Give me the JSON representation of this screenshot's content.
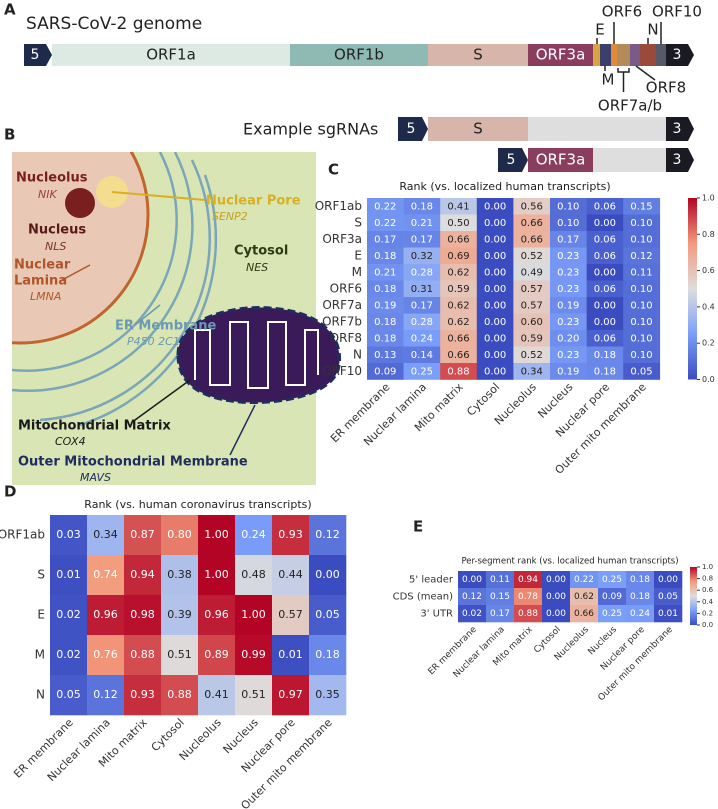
{
  "panel_labels": [
    "A",
    "B",
    "C",
    "D",
    "E"
  ],
  "genome": {
    "title": "SARS-CoV-2 genome",
    "five": "5",
    "three": "3",
    "segments": [
      {
        "name": "ORF1a",
        "color": "#dde9e3"
      },
      {
        "name": "ORF1b",
        "color": "#8fbab3"
      },
      {
        "name": "S",
        "color": "#d8b5aa"
      },
      {
        "name": "ORF3a",
        "color": "#8b3d5e"
      },
      {
        "name": "E",
        "color": "#d9a441"
      },
      {
        "name": "M",
        "color": "#3a3f6e"
      },
      {
        "name": "ORF6",
        "color": "#e08a3a"
      },
      {
        "name": "ORF7a/b",
        "color": "#b38a5a"
      },
      {
        "name": "ORF8",
        "color": "#7a5a8a"
      },
      {
        "name": "N",
        "color": "#9a4a3a"
      },
      {
        "name": "ORF10",
        "color": "#555a6a"
      }
    ]
  },
  "sgrnas": {
    "label": "Example sgRNAs",
    "rows": [
      [
        "5",
        "S",
        "3"
      ],
      [
        "5",
        "ORF3a",
        "3"
      ]
    ]
  },
  "cell_diagram": {
    "compartments": [
      {
        "name": "Nucleolus",
        "marker": "NIK"
      },
      {
        "name": "Nucleus",
        "marker": "NLS"
      },
      {
        "name_lines": [
          "Nuclear",
          "Lamina"
        ],
        "marker": "LMNA"
      },
      {
        "name": "Nuclear Pore",
        "marker": "SENP2"
      },
      {
        "name": "Cytosol",
        "marker": "NES"
      },
      {
        "name": "ER Membrane",
        "marker": "P450 2C1"
      },
      {
        "name": "Mitochondrial Matrix",
        "marker": "COX4"
      },
      {
        "name": "Outer Mitochondrial Membrane",
        "marker": "MAVS"
      }
    ]
  },
  "chart_data": [
    {
      "type": "heatmap",
      "title": "Rank (vs. localized human transcripts)",
      "colormap": "coolwarm",
      "rows": [
        "ORF1ab",
        "S",
        "ORF3a",
        "E",
        "M",
        "ORF6",
        "ORF7a",
        "ORF7b",
        "ORF8",
        "N",
        "ORF10"
      ],
      "columns": [
        "ER membrane",
        "Nuclear lamina",
        "Mito matrix",
        "Cytosol",
        "Nucleolus",
        "Nucleus",
        "Nuclear pore",
        "Outer mito membrane"
      ],
      "values": [
        [
          0.22,
          0.18,
          0.41,
          0,
          0.56,
          0.1,
          0.06,
          0.15
        ],
        [
          0.22,
          0.21,
          0.5,
          0,
          0.66,
          0.1,
          0,
          0.1
        ],
        [
          0.17,
          0.17,
          0.66,
          0,
          0.66,
          0.17,
          0.06,
          0.1
        ],
        [
          0.18,
          0.32,
          0.69,
          0,
          0.52,
          0.23,
          0.06,
          0.12
        ],
        [
          0.21,
          0.28,
          0.62,
          0,
          0.49,
          0.23,
          0,
          0.11
        ],
        [
          0.18,
          0.31,
          0.59,
          0,
          0.57,
          0.23,
          0.06,
          0.1
        ],
        [
          0.19,
          0.17,
          0.62,
          0,
          0.57,
          0.19,
          0,
          0.1
        ],
        [
          0.18,
          0.28,
          0.62,
          0,
          0.6,
          0.23,
          0,
          0.1
        ],
        [
          0.18,
          0.24,
          0.66,
          0,
          0.59,
          0.2,
          0.06,
          0.1
        ],
        [
          0.13,
          0.14,
          0.66,
          0,
          0.52,
          0.23,
          0.18,
          0.1
        ],
        [
          0.09,
          0.25,
          0.88,
          0,
          0.34,
          0.19,
          0.18,
          0.05
        ]
      ],
      "value_labels": [
        [
          "0.22",
          "0.18",
          "0.41",
          "0.00",
          "0.56",
          "0.10",
          "0.06",
          "0.15"
        ],
        [
          "0.22",
          "0.21",
          "0.50",
          "0.00",
          "0.66",
          "0.10",
          "0.00",
          "0.10"
        ],
        [
          "0.17",
          "0.17",
          "0.66",
          "0.00",
          "0.66",
          "0.17",
          "0.06",
          "0.10"
        ],
        [
          "0.18",
          "0.32",
          "0.69",
          "0.00",
          "0.52",
          "0.23",
          "0.06",
          "0.12"
        ],
        [
          "0.21",
          "0.28",
          "0.62",
          "0.00",
          "0.49",
          "0.23",
          "0.00",
          "0.11"
        ],
        [
          "0.18",
          "0.31",
          "0.59",
          "0.00",
          "0.57",
          "0.23",
          "0.06",
          "0.10"
        ],
        [
          "0.19",
          "0.17",
          "0.62",
          "0.00",
          "0.57",
          "0.19",
          "0.00",
          "0.10"
        ],
        [
          "0.18",
          "0.28",
          "0.62",
          "0.00",
          "0.60",
          "0.23",
          "0.00",
          "0.10"
        ],
        [
          "0.18",
          "0.24",
          "0.66",
          "0.00",
          "0.59",
          "0.20",
          "0.06",
          "0.10"
        ],
        [
          "0.13",
          "0.14",
          "0.66",
          "0.00",
          "0.52",
          "0.23",
          "0.18",
          "0.10"
        ],
        [
          "0.09",
          "0.25",
          "0.88",
          "0.00",
          "0.34",
          "0.19",
          "0.18",
          "0.05"
        ]
      ],
      "clim": [
        0,
        1
      ],
      "cticks": [
        {
          "value": 0,
          "label": "0.0"
        },
        0.2,
        0.4,
        0.6,
        0.8,
        {
          "value": 1,
          "label": "1.0"
        }
      ]
    },
    {
      "type": "heatmap",
      "title": "Rank (vs. human coronavirus transcripts)",
      "colormap": "coolwarm",
      "rows": [
        "ORF1ab",
        "S",
        "E",
        "M",
        "N"
      ],
      "columns": [
        "ER membrane",
        "Nuclear lamina",
        "Mito matrix",
        "Cytosol",
        "Nucleolus",
        "Nucleus",
        "Nuclear pore",
        "Outer mito membrane"
      ],
      "values": [
        [
          0.03,
          0.34,
          0.87,
          0.8,
          1,
          0.24,
          0.93,
          0.12
        ],
        [
          0.01,
          0.74,
          0.94,
          0.38,
          1,
          0.48,
          0.44,
          0
        ],
        [
          0.02,
          0.96,
          0.98,
          0.39,
          0.96,
          1,
          0.57,
          0.05
        ],
        [
          0.02,
          0.76,
          0.88,
          0.51,
          0.89,
          0.99,
          0.01,
          0.18
        ],
        [
          0.05,
          0.12,
          0.93,
          0.88,
          0.41,
          0.51,
          0.97,
          0.35
        ]
      ],
      "value_labels": [
        [
          "0.03",
          "0.34",
          "0.87",
          "0.80",
          "1.00",
          "0.24",
          "0.93",
          "0.12"
        ],
        [
          "0.01",
          "0.74",
          "0.94",
          "0.38",
          "1.00",
          "0.48",
          "0.44",
          "0.00"
        ],
        [
          "0.02",
          "0.96",
          "0.98",
          "0.39",
          "0.96",
          "1.00",
          "0.57",
          "0.05"
        ],
        [
          "0.02",
          "0.76",
          "0.88",
          "0.51",
          "0.89",
          "0.99",
          "0.01",
          "0.18"
        ],
        [
          "0.05",
          "0.12",
          "0.93",
          "0.88",
          "0.41",
          "0.51",
          "0.97",
          "0.35"
        ]
      ],
      "clim": [
        0,
        1
      ]
    },
    {
      "type": "heatmap",
      "title": "Per-segment rank (vs. localized human transcripts)",
      "colormap": "coolwarm",
      "rows": [
        "5' leader",
        "CDS (mean)",
        "3' UTR"
      ],
      "columns": [
        "ER membrane",
        "Nuclear lamina",
        "Mito matrix",
        "Cytosol",
        "Nucleolus",
        "Nucleus",
        "Nuclear pore",
        "Outer mito membrane"
      ],
      "values": [
        [
          0,
          0.11,
          0.94,
          0,
          0.22,
          0.25,
          0.18,
          0
        ],
        [
          0.12,
          0.15,
          0.78,
          0,
          0.62,
          0.09,
          0.18,
          0.05
        ],
        [
          0.02,
          0.17,
          0.88,
          0,
          0.66,
          0.25,
          0.24,
          0.01
        ]
      ],
      "value_labels": [
        [
          "0.00",
          "0.11",
          "0.94",
          "0.00",
          "0.22",
          "0.25",
          "0.18",
          "0.00"
        ],
        [
          "0.12",
          "0.15",
          "0.78",
          "0.00",
          "0.62",
          "0.09",
          "0.18",
          "0.05"
        ],
        [
          "0.02",
          "0.17",
          "0.88",
          "0.00",
          "0.66",
          "0.25",
          "0.24",
          "0.01"
        ]
      ],
      "clim": [
        0,
        1
      ],
      "cticks": [
        {
          "value": 0,
          "label": "0.0"
        },
        0.2,
        0.4,
        0.6,
        0.8,
        {
          "value": 1,
          "label": "1.0"
        }
      ]
    }
  ]
}
